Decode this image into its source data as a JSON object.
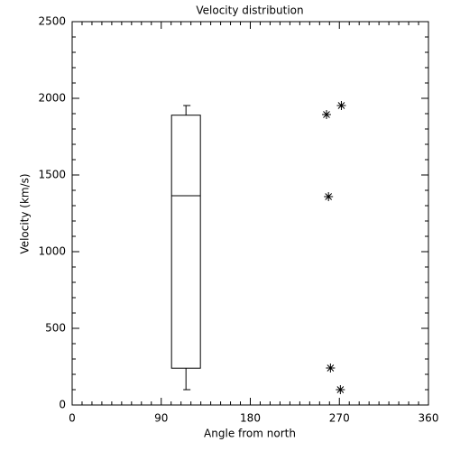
{
  "chart_data": {
    "type": "box",
    "title": "Velocity distribution",
    "x_label": "Angle from north",
    "y_label": "Velocity (km/s)",
    "boxes": [
      {
        "position": 115,
        "min": 100,
        "q1": 240,
        "median": 1365,
        "q3": 1890,
        "max": 1953
      }
    ],
    "points": {
      "x": [
        257,
        272,
        259,
        261,
        271
      ],
      "values": [
        1894,
        1953,
        1359,
        241,
        100
      ]
    },
    "xlim": [
      0,
      360
    ],
    "xticks": [
      0,
      90,
      180,
      270,
      360
    ],
    "ylim": [
      0,
      2500
    ],
    "yticks": [
      0,
      500,
      1000,
      1500,
      2000,
      2500
    ]
  }
}
